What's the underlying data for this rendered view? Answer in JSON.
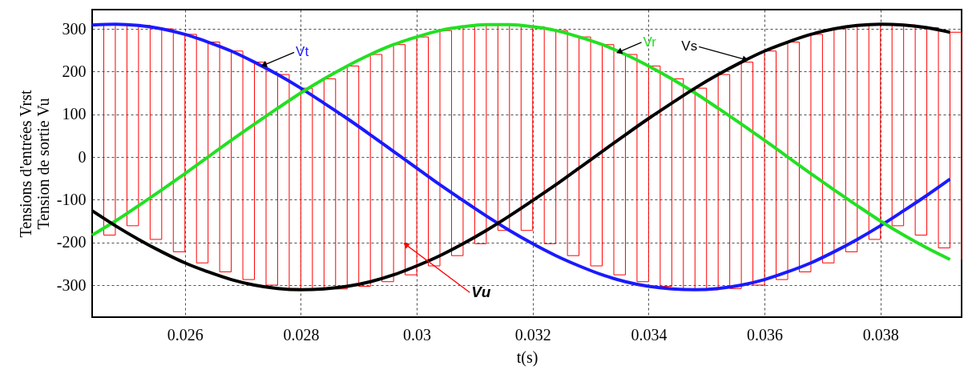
{
  "chart_data": {
    "type": "line",
    "xlabel": "t(s)",
    "ylabel": "Tensions d'entrées Vrst\nTension de sortie Vu",
    "x": [
      0.0244,
      0.0248,
      0.0252,
      0.0256,
      0.026,
      0.0264,
      0.0268,
      0.0272,
      0.0276,
      0.028,
      0.0284,
      0.0288,
      0.0292,
      0.0296,
      0.03,
      0.0304,
      0.0308,
      0.0312,
      0.0316,
      0.032,
      0.0324,
      0.0328,
      0.0332,
      0.0336,
      0.034,
      0.0344,
      0.0348,
      0.0352,
      0.0356,
      0.036,
      0.0364,
      0.0368,
      0.0372,
      0.0376,
      0.038,
      0.0384,
      0.0388,
      0.0392
    ],
    "series": [
      {
        "type": "step",
        "color": "#ff0000",
        "x": [
          0.0244,
          0.0246,
          0.0248,
          0.025,
          0.0252,
          0.0254,
          0.0256,
          0.0258,
          0.026,
          0.0262,
          0.0264,
          0.0266,
          0.0268,
          0.027,
          0.0272,
          0.0274,
          0.0276,
          0.0278,
          0.028,
          0.0282,
          0.0284,
          0.0286,
          0.0288,
          0.029,
          0.0292,
          0.0294,
          0.0296,
          0.0298,
          0.03,
          0.0302,
          0.0304,
          0.0306,
          0.0308,
          0.031,
          0.0312,
          0.0314,
          0.0316,
          0.0318,
          0.032,
          0.0322,
          0.0324,
          0.0326,
          0.0328,
          0.033,
          0.0332,
          0.0334,
          0.0336,
          0.0338,
          0.034,
          0.0342,
          0.0344,
          0.0346,
          0.0348,
          0.035,
          0.0352,
          0.0354,
          0.0356,
          0.0358,
          0.036,
          0.0362,
          0.0364,
          0.0366,
          0.0368,
          0.037,
          0.0372,
          0.0374,
          0.0376,
          0.0378,
          0.038,
          0.0382,
          0.0384,
          0.0386,
          0.0388,
          0.039,
          0.0392,
          0.0394
        ],
        "values": [
          309,
          -183,
          311,
          -161,
          308,
          -193,
          300,
          -222,
          287,
          -248,
          269,
          -269,
          248,
          -287,
          222,
          -300,
          193,
          -308,
          161,
          -311,
          183,
          -309,
          213,
          -303,
          240,
          -292,
          263,
          -276,
          281,
          -255,
          296,
          -231,
          305,
          -203,
          310,
          -172,
          310,
          -172,
          305,
          -203,
          296,
          -231,
          281,
          -255,
          263,
          -276,
          240,
          -292,
          213,
          -303,
          183,
          -309,
          161,
          -311,
          193,
          -308,
          222,
          -300,
          248,
          -287,
          269,
          -269,
          287,
          -248,
          300,
          -222,
          308,
          -193,
          311,
          -161,
          309,
          -183,
          303,
          -213,
          292,
          -240
        ]
      },
      {
        "color": "#1a1aff",
        "values": [
          309,
          311,
          308,
          300,
          287,
          269,
          248,
          222,
          193,
          161,
          126,
          90,
          52,
          13,
          -26,
          -65,
          -102,
          -138,
          -172,
          -203,
          -231,
          -255,
          -276,
          -292,
          -303,
          -309,
          -311,
          -308,
          -300,
          -287,
          -269,
          -248,
          -222,
          -193,
          -161,
          -126,
          -90,
          -52
        ]
      },
      {
        "color": "#22e022",
        "values": [
          -183,
          -150,
          -114,
          -77,
          -39,
          0,
          39,
          77,
          114,
          150,
          183,
          213,
          240,
          263,
          281,
          296,
          305,
          310,
          310,
          305,
          296,
          281,
          263,
          240,
          213,
          183,
          150,
          114,
          77,
          39,
          0,
          -39,
          -77,
          -114,
          -150,
          -183,
          -213,
          -240
        ]
      },
      {
        "color": "#000000",
        "values": [
          -126,
          -161,
          -193,
          -222,
          -248,
          -269,
          -287,
          -300,
          -308,
          -311,
          -309,
          -303,
          -292,
          -276,
          -255,
          -231,
          -203,
          -172,
          -138,
          -102,
          -65,
          -26,
          13,
          52,
          90,
          126,
          161,
          193,
          222,
          248,
          269,
          287,
          300,
          308,
          311,
          309,
          303,
          292
        ]
      }
    ],
    "annotations": [
      {
        "text": "Vt",
        "x": 0.02736,
        "y": 215
      },
      {
        "text": "Vr",
        "x": 0.03349,
        "y": 246
      },
      {
        "text": "Vs",
        "x": 0.03567,
        "y": 228
      },
      {
        "text": "Vu",
        "x": 0.02981,
        "y": -205
      }
    ],
    "xlim": [
      0.0244,
      0.0394
    ],
    "ylim": [
      -375,
      345
    ],
    "xticks": [
      0.026,
      0.028,
      0.03,
      0.032,
      0.034,
      0.036,
      0.038
    ],
    "yticks": [
      -300,
      -200,
      -100,
      0,
      100,
      200,
      300
    ],
    "grid": true,
    "line_style": "solid",
    "marker": "none"
  }
}
